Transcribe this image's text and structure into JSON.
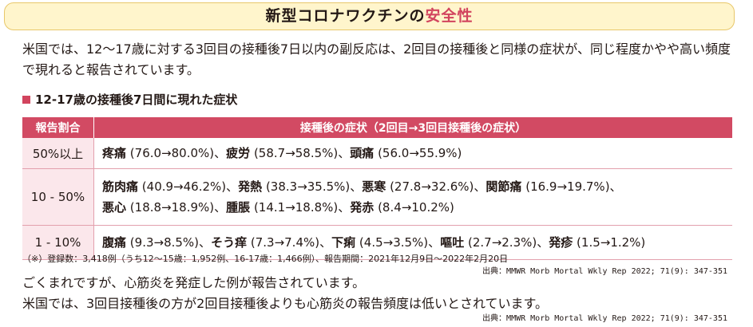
{
  "title": {
    "main": "新型コロナワクチンの",
    "accent": "安全性"
  },
  "intro": "米国では、12～17歳に対する3回目の接種後7日以内の副反応は、2回目の接種後と同様の症状が、同じ程度かやや高い頻度で現れると報告されています。",
  "section_heading": "12-17歳の接種後7日間に現れた症状",
  "table": {
    "headers": [
      "報告割合",
      "接種後の症状（2回目→3回目接種後の症状）"
    ],
    "rows": [
      {
        "rate": "50%以上",
        "symptoms": [
          {
            "name": "疼痛",
            "value": "(76.0→80.0%)"
          },
          {
            "name": "疲労",
            "value": "(58.7→58.5%)"
          },
          {
            "name": "頭痛",
            "value": "(56.0→55.9%)"
          }
        ]
      },
      {
        "rate": "10 - 50%",
        "symptoms": [
          {
            "name": "筋肉痛",
            "value": "(40.9→46.2%)"
          },
          {
            "name": "発熱",
            "value": "(38.3→35.5%)"
          },
          {
            "name": "悪寒",
            "value": "(27.8→32.6%)"
          },
          {
            "name": "関節痛",
            "value": "(16.9→19.7%)"
          },
          {
            "name": "悪心",
            "value": "(18.8→18.9%)"
          },
          {
            "name": "腫脹",
            "value": "(14.1→18.8%)"
          },
          {
            "name": "発赤",
            "value": "(8.4→10.2%)"
          }
        ]
      },
      {
        "rate": "1 - 10%",
        "symptoms": [
          {
            "name": "腹痛",
            "value": "(9.3→8.5%)"
          },
          {
            "name": "そう痒",
            "value": "(7.3→7.4%)"
          },
          {
            "name": "下痢",
            "value": "(4.5→3.5%)"
          },
          {
            "name": "嘔吐",
            "value": "(2.7→2.3%)"
          },
          {
            "name": "発疹",
            "value": "(1.5→1.2%)"
          }
        ]
      }
    ]
  },
  "footnote": "（※）登録数：3,418例（うち12～15歳：1,952例、16-17歳：1,466例）、報告期間：2021年12月9日～2022年2月20日",
  "source1": "出典：MMWR Morb Mortal Wkly Rep 2022; 71(9): 347-351",
  "paragraph2": "ごくまれですが、心筋炎を発症した例が報告されています。",
  "paragraph3": "米国では、3回目接種後の方が2回目接種後よりも心筋炎の報告頻度は低いとされています。",
  "source2": "出典：MMWR Morb Mortal Wkly Rep 2022; 71(9): 347-351"
}
